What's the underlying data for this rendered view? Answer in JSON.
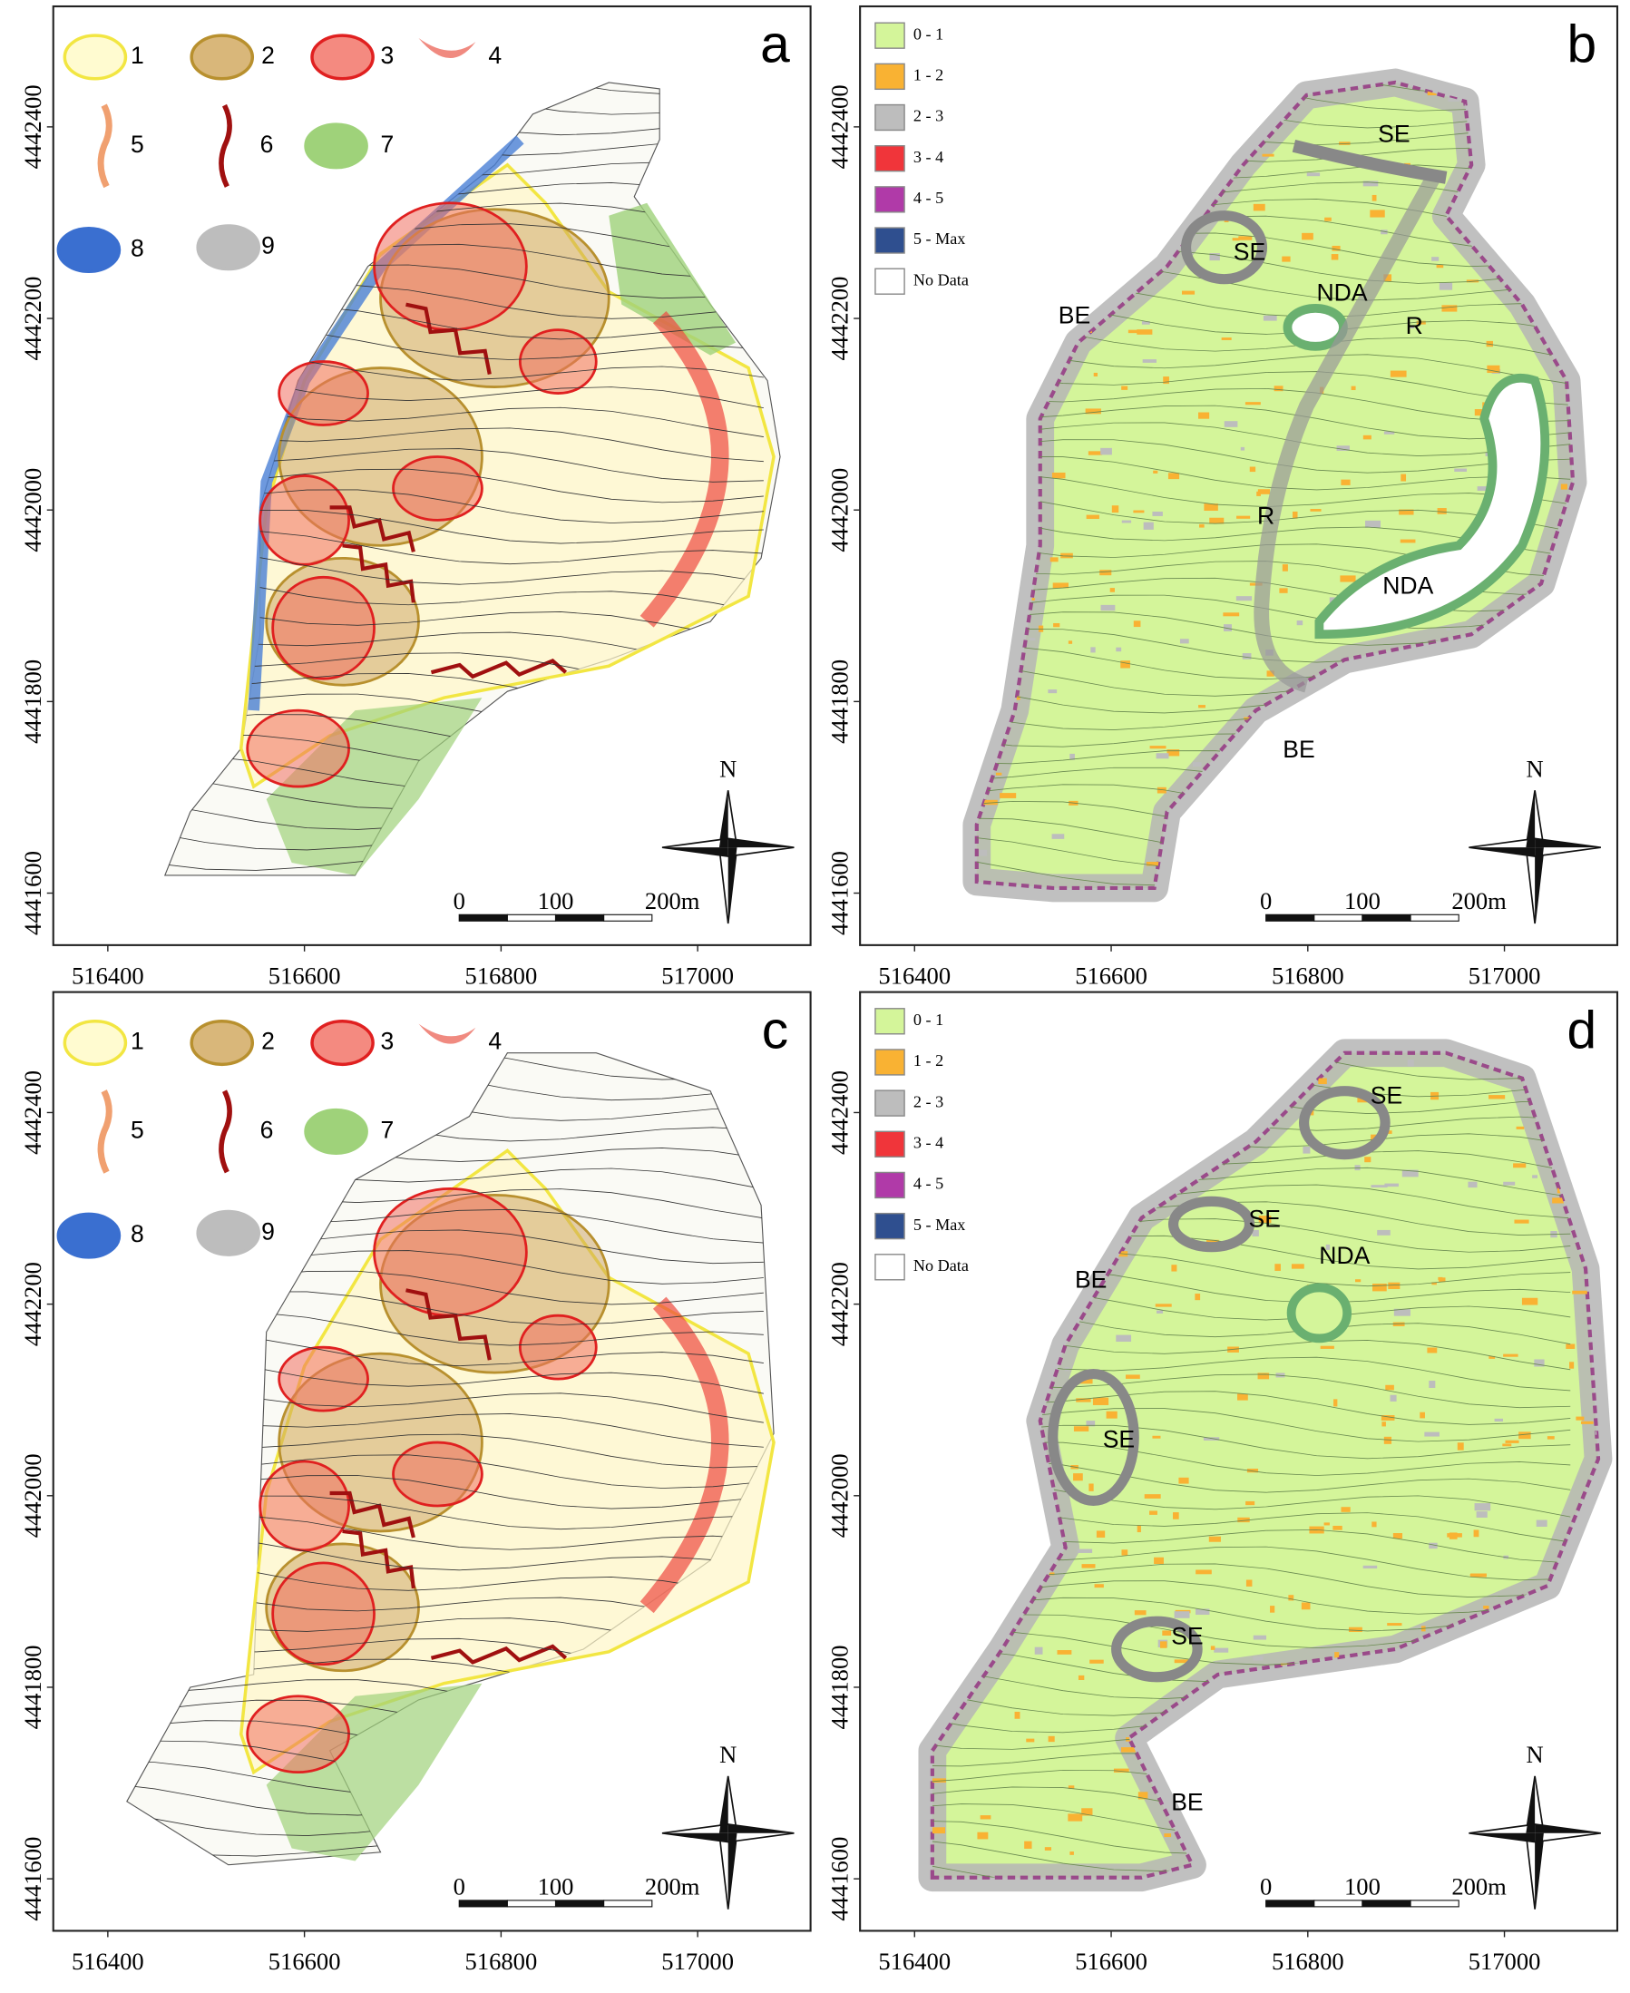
{
  "panels": [
    {
      "letter": "a",
      "legend": [
        "1",
        "2",
        "3",
        "4",
        "5",
        "6",
        "7",
        "8",
        "9"
      ],
      "x_ticks": [
        516400,
        516600,
        516800,
        517000
      ],
      "y_ticks": [
        4442400,
        4442200,
        4442000,
        4441800,
        4441600
      ],
      "scale_bar": [
        "0",
        "100",
        "200m"
      ],
      "north": "N"
    },
    {
      "letter": "b",
      "legend": [
        "0 - 1",
        "1 - 2",
        "2 - 3",
        "3 - 4",
        "4 - 5",
        "5 - Max",
        "No Data"
      ],
      "labels": [
        "SE",
        "SE",
        "NDA",
        "BE",
        "R",
        "R",
        "NDA",
        "BE"
      ],
      "x_ticks": [
        516400,
        516600,
        516800,
        517000
      ],
      "y_ticks": [
        4442400,
        4442200,
        4442000,
        4441800,
        4441600
      ],
      "scale_bar": [
        "0",
        "100",
        "200m"
      ],
      "north": "N"
    },
    {
      "letter": "c",
      "legend": [
        "1",
        "2",
        "3",
        "4",
        "5",
        "6",
        "7",
        "8",
        "9"
      ],
      "x_ticks": [
        516400,
        516600,
        516800,
        517000
      ],
      "y_ticks": [
        4442400,
        4442200,
        4442000,
        4441800,
        4441600
      ],
      "scale_bar": [
        "0",
        "100",
        "200m"
      ],
      "north": "N"
    },
    {
      "letter": "d",
      "legend": [
        "0 - 1",
        "1 - 2",
        "2 - 3",
        "3 - 4",
        "4 - 5",
        "5 - Max",
        "No Data"
      ],
      "labels": [
        "SE",
        "SE",
        "NDA",
        "BE",
        "SE",
        "SE",
        "BE"
      ],
      "x_ticks": [
        516400,
        516600,
        516800,
        517000
      ],
      "y_ticks": [
        4442400,
        4442200,
        4442000,
        4441800,
        4441600
      ],
      "scale_bar": [
        "0",
        "100",
        "200m"
      ],
      "north": "N"
    }
  ]
}
